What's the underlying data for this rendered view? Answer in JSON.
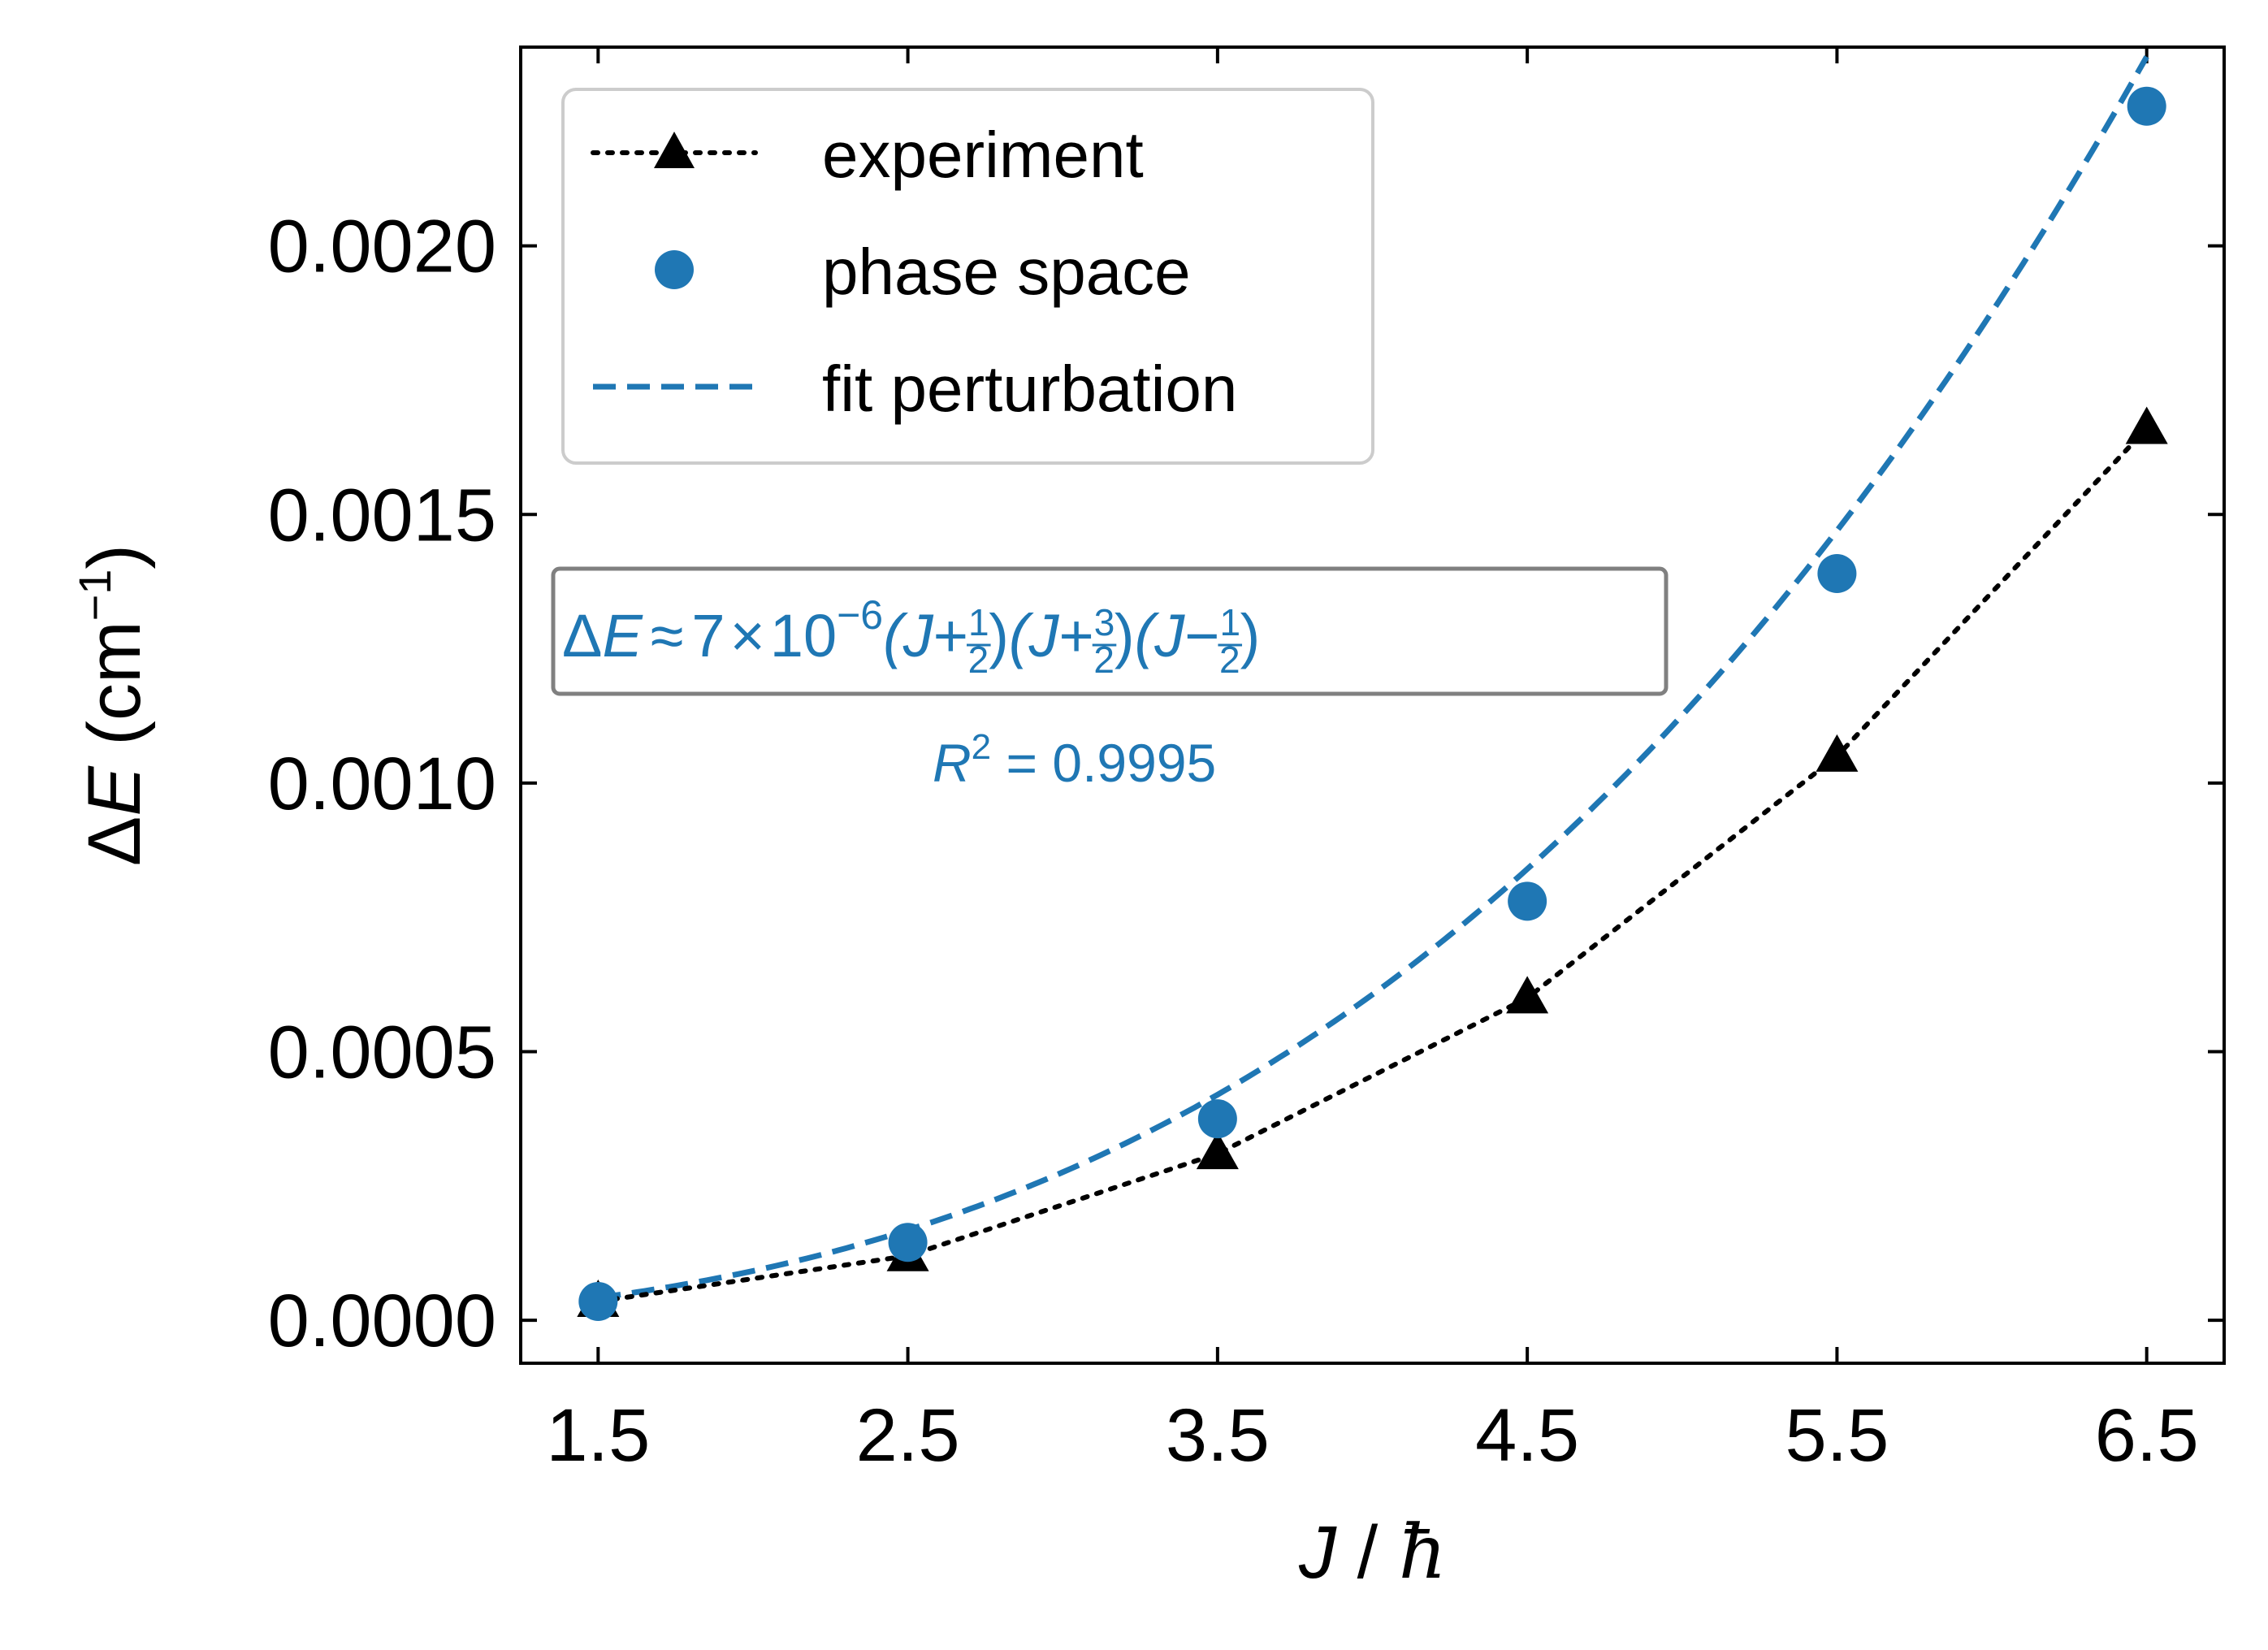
{
  "chart_data": {
    "type": "line",
    "x": [
      1.5,
      2.5,
      3.5,
      4.5,
      5.5,
      6.5
    ],
    "xlim": [
      1.25,
      6.75
    ],
    "ylim": [
      -8e-05,
      0.00237
    ],
    "xticks": [
      "1.5",
      "2.5",
      "3.5",
      "4.5",
      "5.5",
      "6.5"
    ],
    "xtick_values": [
      1.5,
      2.5,
      3.5,
      4.5,
      5.5,
      6.5
    ],
    "yticks": [
      "0.0000",
      "0.0005",
      "0.0010",
      "0.0015",
      "0.0020"
    ],
    "ytick_values": [
      0,
      0.0005,
      0.001,
      0.0015,
      0.002
    ],
    "xlabel": {
      "var": "J",
      "sep": " / ",
      "unit": "ħ"
    },
    "ylabel": {
      "delta": "Δ",
      "var": "E",
      "unit_open": " (cm",
      "exp": "−1",
      "unit_close": ")"
    },
    "series": [
      {
        "name": "experiment",
        "marker": "triangle",
        "line": "dotted",
        "color": "#000000",
        "values": [
          3.5e-05,
          0.00012,
          0.00031,
          0.0006,
          0.00105,
          0.00166
        ]
      },
      {
        "name": "phase space",
        "marker": "circle",
        "line": "none",
        "color": "#1f77b4",
        "values": [
          3.5e-05,
          0.000145,
          0.000375,
          0.00078,
          0.00139,
          0.00226
        ]
      },
      {
        "name": "fit perturbation",
        "marker": "none",
        "line": "dashed",
        "color": "#1f77b4",
        "fit": {
          "coef": 7e-06,
          "form": "(J+1/2)(J+3/2)(J-1/2)"
        }
      }
    ],
    "legend": {
      "placement": "top-left",
      "entries": [
        "experiment",
        "phase space",
        "fit perturbation"
      ]
    },
    "annotation": {
      "lhs_delta": "Δ",
      "lhs_var": "E",
      "approx": "≈",
      "coef": "7",
      "times": "×",
      "base": "10",
      "exponent": "−6",
      "factor1": {
        "open": "(J",
        "sign": "+",
        "num": "1",
        "den": "2",
        "close": ")"
      },
      "factor2": {
        "open": "(J",
        "sign": "+",
        "num": "3",
        "den": "2",
        "close": ")"
      },
      "factor3": {
        "open": "(J",
        "sign": "−",
        "num": "1",
        "den": "2",
        "close": ")"
      },
      "r2_label": "R",
      "r2_exp": "2",
      "r2_eq": " = 0.9995"
    }
  }
}
